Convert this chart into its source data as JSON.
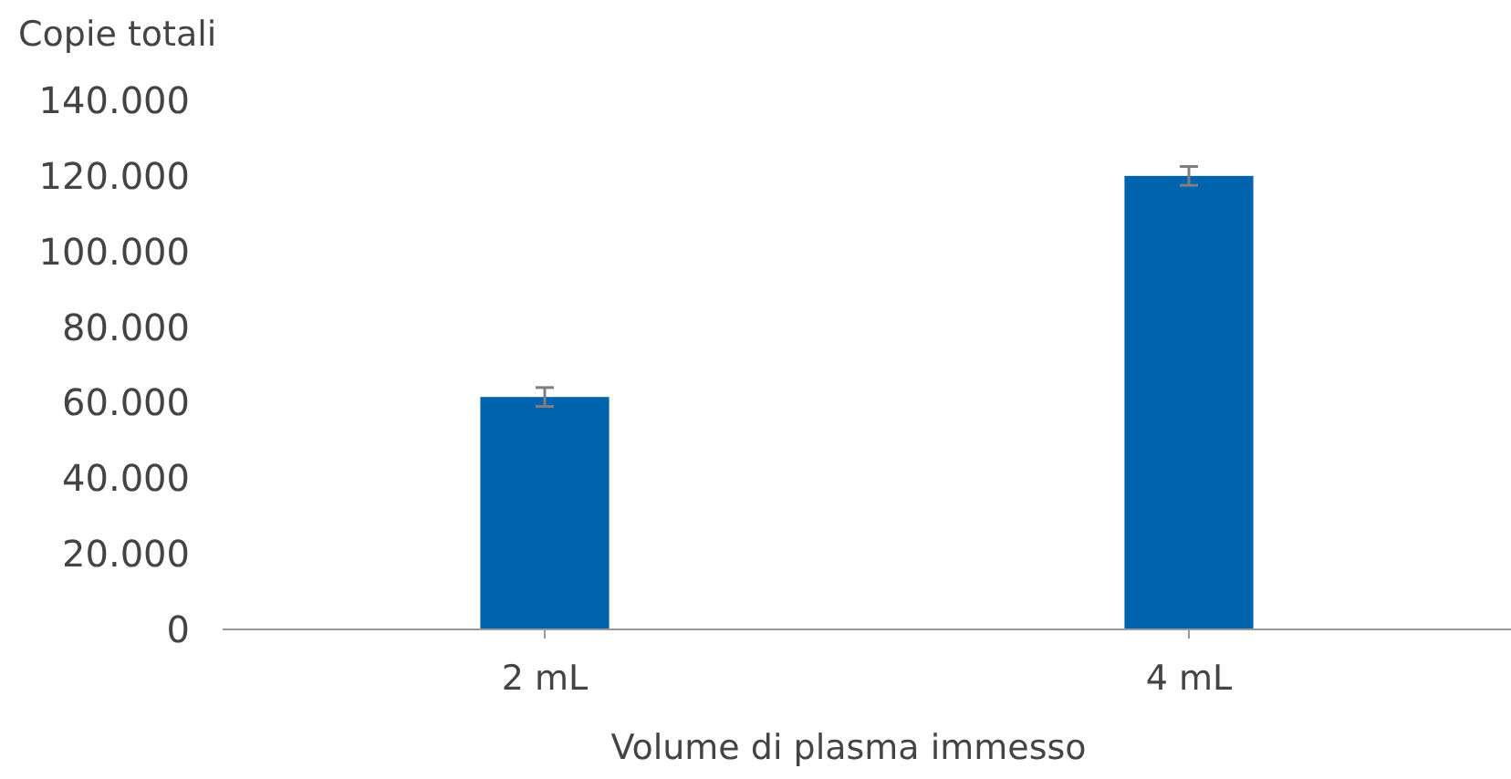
{
  "chart_data": {
    "type": "bar",
    "ylabel": "Copie totali",
    "xlabel": "Volume di plasma immesso",
    "categories": [
      "2 mL",
      "4 mL"
    ],
    "values": [
      61500,
      120000
    ],
    "errors": [
      2500,
      2500
    ],
    "color": "#0063ad",
    "ylim": [
      0,
      140000
    ],
    "yticks": [
      {
        "value": 0,
        "label": "0"
      },
      {
        "value": 20000,
        "label": "20.000"
      },
      {
        "value": 40000,
        "label": "40.000"
      },
      {
        "value": 60000,
        "label": "60.000"
      },
      {
        "value": 80000,
        "label": "80.000"
      },
      {
        "value": 100000,
        "label": "100.000"
      },
      {
        "value": 120000,
        "label": "120.000"
      },
      {
        "value": 140000,
        "label": "140.000"
      }
    ],
    "grid": false
  }
}
